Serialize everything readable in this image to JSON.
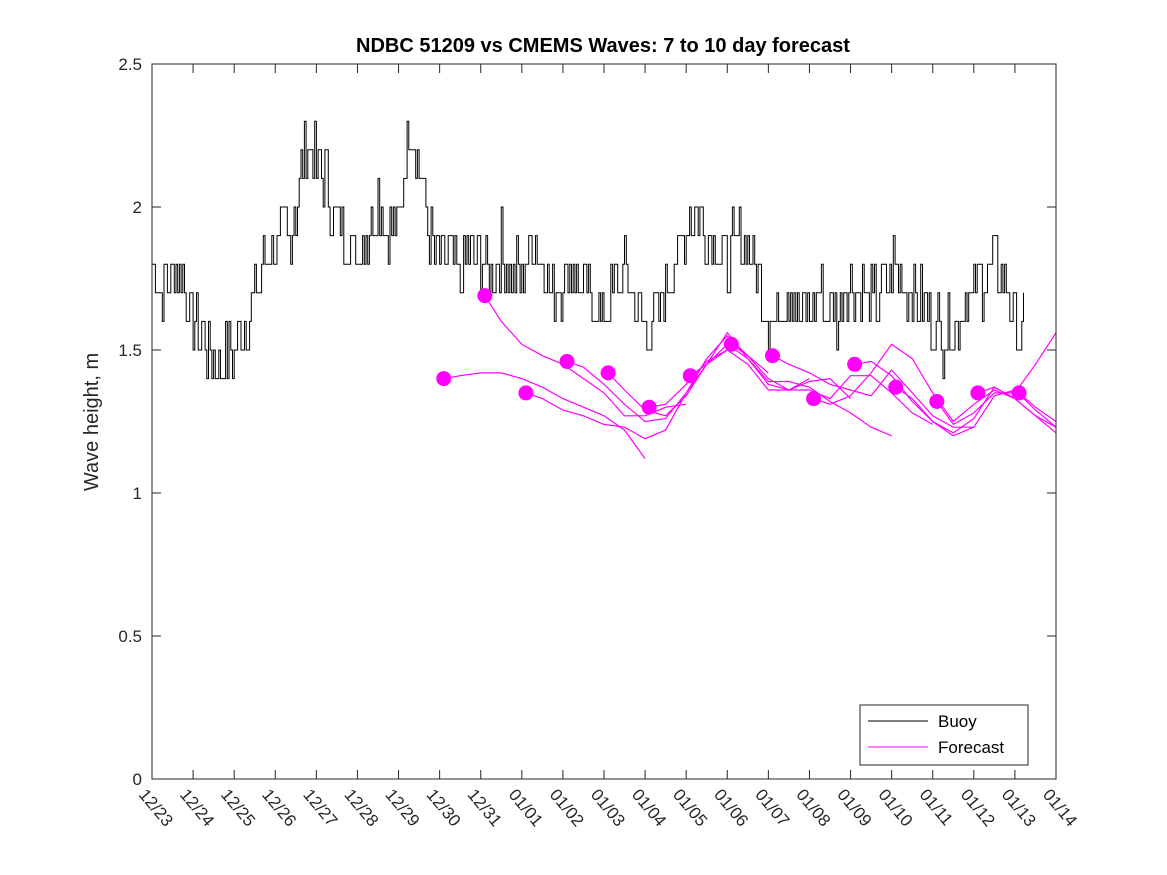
{
  "chart_data": {
    "type": "line",
    "title": "NDBC 51209 vs CMEMS Waves: 7 to 10 day forecast",
    "xlabel": "",
    "ylabel": "Wave height, m",
    "xlim": [
      0,
      22
    ],
    "ylim": [
      0,
      2.5
    ],
    "x_unit": "days since 12/23",
    "x_ticks": [
      0,
      1,
      2,
      3,
      4,
      5,
      6,
      7,
      8,
      9,
      10,
      11,
      12,
      13,
      14,
      15,
      16,
      17,
      18,
      19,
      20,
      21,
      22
    ],
    "x_tick_labels": [
      "12/23",
      "12/24",
      "12/25",
      "12/26",
      "12/27",
      "12/28",
      "12/29",
      "12/30",
      "12/31",
      "01/01",
      "01/02",
      "01/03",
      "01/04",
      "01/05",
      "01/06",
      "01/07",
      "01/08",
      "01/09",
      "01/10",
      "01/11",
      "01/12",
      "01/13",
      "01/14"
    ],
    "y_ticks": [
      0,
      0.5,
      1,
      1.5,
      2,
      2.5
    ],
    "y_tick_labels": [
      "0",
      "0.5",
      "1",
      "1.5",
      "2",
      "2.5"
    ],
    "legend": {
      "position": "bottom-right",
      "entries": [
        {
          "label": "Buoy",
          "color": "#000000"
        },
        {
          "label": "Forecast",
          "color": "#ff00ff"
        }
      ]
    },
    "buoy": {
      "name": "Buoy",
      "color": "#000000",
      "x": [
        0,
        0.25,
        0.5,
        0.75,
        1,
        1.25,
        1.5,
        1.75,
        2,
        2.25,
        2.5,
        2.75,
        3,
        3.25,
        3.5,
        3.75,
        4,
        4.25,
        4.5,
        4.75,
        5,
        5.25,
        5.5,
        5.75,
        6,
        6.25,
        6.5,
        6.75,
        7,
        7.25,
        7.5,
        7.75,
        8,
        8.25,
        8.5,
        8.75,
        9,
        9.25,
        9.5,
        9.75,
        10,
        10.25,
        10.5,
        10.75,
        11,
        11.25,
        11.5,
        11.75,
        12,
        12.25,
        12.5,
        12.75,
        13,
        13.25,
        13.5,
        13.75,
        14,
        14.25,
        14.5,
        14.75,
        15,
        15.25,
        15.5,
        15.75,
        16,
        16.25,
        16.5,
        16.75,
        17,
        17.25,
        17.5,
        17.75,
        18,
        18.25,
        18.5,
        18.75,
        19,
        19.25,
        19.5,
        19.75,
        20,
        20.25,
        20.5,
        20.75,
        21,
        21.25
      ],
      "y": [
        1.8,
        1.7,
        1.8,
        1.75,
        1.6,
        1.55,
        1.45,
        1.45,
        1.5,
        1.6,
        1.7,
        1.8,
        1.85,
        1.9,
        2.0,
        2.2,
        2.15,
        2.1,
        1.95,
        1.9,
        1.85,
        1.9,
        2.05,
        1.9,
        1.95,
        2.3,
        2.15,
        1.9,
        1.8,
        1.85,
        1.75,
        1.85,
        1.8,
        1.75,
        1.85,
        1.8,
        1.75,
        1.9,
        1.8,
        1.7,
        1.75,
        1.8,
        1.7,
        1.65,
        1.6,
        1.7,
        1.75,
        1.65,
        1.55,
        1.6,
        1.7,
        1.8,
        1.95,
        2.0,
        1.9,
        1.85,
        1.8,
        1.9,
        1.85,
        1.75,
        1.6,
        1.65,
        1.7,
        1.65,
        1.6,
        1.7,
        1.6,
        1.65,
        1.75,
        1.7,
        1.65,
        1.7,
        1.8,
        1.75,
        1.7,
        1.65,
        1.6,
        1.55,
        1.6,
        1.65,
        1.7,
        1.75,
        1.8,
        1.75,
        1.6,
        1.55
      ]
    },
    "forecasts": [
      {
        "name": "Forecast",
        "color": "#ff00ff",
        "x": [
          7.1,
          7.5,
          8,
          8.5,
          9,
          9.5,
          10,
          10.5,
          11,
          11.5,
          12
        ],
        "y": [
          1.4,
          1.41,
          1.42,
          1.42,
          1.4,
          1.37,
          1.33,
          1.3,
          1.27,
          1.22,
          1.12
        ]
      },
      {
        "name": "Forecast",
        "color": "#ff00ff",
        "x": [
          8.1,
          8.5,
          9,
          9.5,
          10,
          10.5,
          11,
          11.5,
          12,
          12.5,
          13
        ],
        "y": [
          1.69,
          1.6,
          1.52,
          1.48,
          1.45,
          1.4,
          1.35,
          1.27,
          1.27,
          1.3,
          1.31
        ]
      },
      {
        "name": "Forecast",
        "color": "#ff00ff",
        "x": [
          9.1,
          9.5,
          10,
          10.5,
          11,
          11.5,
          12,
          12.5,
          13,
          13.5,
          14
        ],
        "y": [
          1.35,
          1.33,
          1.29,
          1.27,
          1.24,
          1.23,
          1.19,
          1.22,
          1.35,
          1.45,
          1.5
        ]
      },
      {
        "name": "Forecast",
        "color": "#ff00ff",
        "x": [
          10.1,
          10.5,
          11,
          11.5,
          12,
          12.5,
          13,
          13.5,
          14,
          14.5,
          15
        ],
        "y": [
          1.46,
          1.44,
          1.38,
          1.31,
          1.25,
          1.26,
          1.35,
          1.47,
          1.55,
          1.48,
          1.42
        ]
      },
      {
        "name": "Forecast",
        "color": "#ff00ff",
        "x": [
          11.1,
          11.5,
          12,
          12.5,
          13,
          13.5,
          14,
          14.5,
          15,
          15.5,
          16
        ],
        "y": [
          1.42,
          1.36,
          1.29,
          1.27,
          1.34,
          1.45,
          1.56,
          1.47,
          1.38,
          1.36,
          1.4
        ]
      },
      {
        "name": "Forecast",
        "color": "#ff00ff",
        "x": [
          12.1,
          12.5,
          13,
          13.5,
          14,
          14.5,
          15,
          15.5,
          16,
          16.5,
          17
        ],
        "y": [
          1.3,
          1.31,
          1.38,
          1.46,
          1.5,
          1.45,
          1.36,
          1.36,
          1.39,
          1.4,
          1.33
        ]
      },
      {
        "name": "Forecast",
        "color": "#ff00ff",
        "x": [
          13.1,
          13.5,
          14,
          14.5,
          15,
          15.5,
          16,
          16.5,
          17,
          17.5,
          18
        ],
        "y": [
          1.41,
          1.45,
          1.52,
          1.47,
          1.39,
          1.39,
          1.37,
          1.32,
          1.28,
          1.23,
          1.2
        ]
      },
      {
        "name": "Forecast",
        "color": "#ff00ff",
        "x": [
          14.1,
          14.5,
          15,
          15.5,
          16,
          16.5,
          17,
          17.5,
          18,
          18.5,
          19
        ],
        "y": [
          1.52,
          1.48,
          1.4,
          1.36,
          1.36,
          1.33,
          1.41,
          1.41,
          1.35,
          1.28,
          1.24
        ]
      },
      {
        "name": "Forecast",
        "color": "#ff00ff",
        "x": [
          15.1,
          15.5,
          16,
          16.5,
          17,
          17.5,
          18,
          18.5,
          19,
          19.5,
          20
        ],
        "y": [
          1.48,
          1.45,
          1.42,
          1.38,
          1.36,
          1.34,
          1.43,
          1.35,
          1.27,
          1.23,
          1.23
        ]
      },
      {
        "name": "Forecast",
        "color": "#ff00ff",
        "x": [
          16.1,
          16.5,
          17,
          17.5,
          18,
          18.5,
          19,
          19.5,
          20,
          20.5,
          21
        ],
        "y": [
          1.33,
          1.31,
          1.34,
          1.42,
          1.52,
          1.47,
          1.35,
          1.25,
          1.31,
          1.36,
          1.33
        ]
      },
      {
        "name": "Forecast",
        "color": "#ff00ff",
        "x": [
          17.1,
          17.5,
          18,
          18.5,
          19,
          19.5,
          20,
          20.5,
          21,
          21.5,
          22
        ],
        "y": [
          1.45,
          1.46,
          1.41,
          1.32,
          1.25,
          1.2,
          1.23,
          1.34,
          1.36,
          1.29,
          1.23
        ]
      },
      {
        "name": "Forecast",
        "color": "#ff00ff",
        "x": [
          18.1,
          18.5,
          19,
          19.5,
          20,
          20.5,
          21,
          21.5,
          22
        ],
        "y": [
          1.37,
          1.33,
          1.25,
          1.21,
          1.26,
          1.37,
          1.33,
          1.27,
          1.21
        ]
      },
      {
        "name": "Forecast",
        "color": "#ff00ff",
        "x": [
          19.1,
          19.5,
          20,
          20.5,
          21,
          21.5,
          22
        ],
        "y": [
          1.32,
          1.24,
          1.28,
          1.35,
          1.35,
          1.45,
          1.56
        ]
      },
      {
        "name": "Forecast",
        "color": "#ff00ff",
        "x": [
          20.1,
          20.5,
          21,
          21.5,
          22
        ],
        "y": [
          1.35,
          1.37,
          1.33,
          1.27,
          1.23
        ]
      },
      {
        "name": "Forecast",
        "color": "#ff00ff",
        "x": [
          21.1,
          21.5,
          22
        ],
        "y": [
          1.35,
          1.3,
          1.25
        ]
      }
    ]
  }
}
